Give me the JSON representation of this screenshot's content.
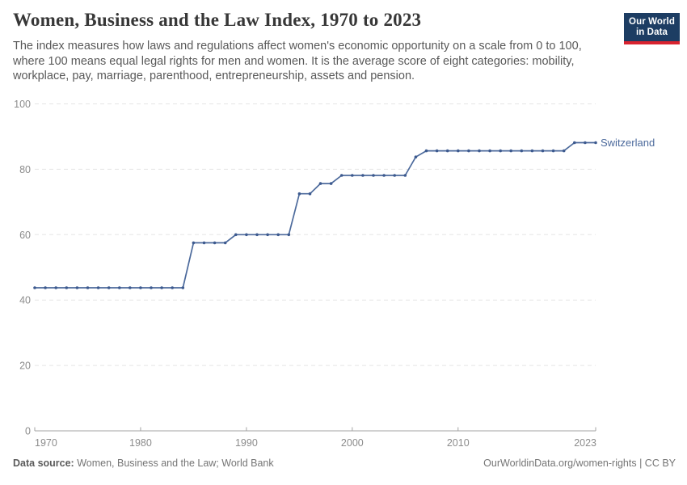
{
  "header": {
    "title": "Women, Business and the Law Index, 1970 to 2023",
    "subtitle": "The index measures how laws and regulations affect women's economic opportunity on a scale from 0 to 100, where 100 means equal legal rights for men and women. It is the average score of eight categories: mobility, workplace, pay, marriage, parenthood, entrepreneurship, assets and pension.",
    "logo_line1": "Our World",
    "logo_line2": "in Data"
  },
  "chart_data": {
    "type": "line",
    "title": "Women, Business and the Law Index, 1970 to 2023",
    "xlabel": "",
    "ylabel": "",
    "xlim": [
      1970,
      2023
    ],
    "ylim": [
      0,
      100
    ],
    "x_ticks": [
      1970,
      1980,
      1990,
      2000,
      2010,
      2023
    ],
    "y_ticks": [
      0,
      20,
      40,
      60,
      80,
      100
    ],
    "grid": "horizontal-dashed",
    "legend_position": "end-of-line-label",
    "series": [
      {
        "name": "Switzerland",
        "color": "#4c6a9c",
        "marker_color": "#3d5a8f",
        "points": [
          [
            1970,
            43.75
          ],
          [
            1971,
            43.75
          ],
          [
            1972,
            43.75
          ],
          [
            1973,
            43.75
          ],
          [
            1974,
            43.75
          ],
          [
            1975,
            43.75
          ],
          [
            1976,
            43.75
          ],
          [
            1977,
            43.75
          ],
          [
            1978,
            43.75
          ],
          [
            1979,
            43.75
          ],
          [
            1980,
            43.75
          ],
          [
            1981,
            43.75
          ],
          [
            1982,
            43.75
          ],
          [
            1983,
            43.75
          ],
          [
            1984,
            43.75
          ],
          [
            1985,
            57.5
          ],
          [
            1986,
            57.5
          ],
          [
            1987,
            57.5
          ],
          [
            1988,
            57.5
          ],
          [
            1989,
            60
          ],
          [
            1990,
            60
          ],
          [
            1991,
            60
          ],
          [
            1992,
            60
          ],
          [
            1993,
            60
          ],
          [
            1994,
            60
          ],
          [
            1995,
            72.5
          ],
          [
            1996,
            72.5
          ],
          [
            1997,
            75.625
          ],
          [
            1998,
            75.625
          ],
          [
            1999,
            78.125
          ],
          [
            2000,
            78.125
          ],
          [
            2001,
            78.125
          ],
          [
            2002,
            78.125
          ],
          [
            2003,
            78.125
          ],
          [
            2004,
            78.125
          ],
          [
            2005,
            78.125
          ],
          [
            2006,
            83.75
          ],
          [
            2007,
            85.625
          ],
          [
            2008,
            85.625
          ],
          [
            2009,
            85.625
          ],
          [
            2010,
            85.625
          ],
          [
            2011,
            85.625
          ],
          [
            2012,
            85.625
          ],
          [
            2013,
            85.625
          ],
          [
            2014,
            85.625
          ],
          [
            2015,
            85.625
          ],
          [
            2016,
            85.625
          ],
          [
            2017,
            85.625
          ],
          [
            2018,
            85.625
          ],
          [
            2019,
            85.625
          ],
          [
            2020,
            85.625
          ],
          [
            2021,
            88.125
          ],
          [
            2022,
            88.125
          ],
          [
            2023,
            88.125
          ]
        ]
      }
    ]
  },
  "footer": {
    "source_label": "Data source:",
    "source_value": "Women, Business and the Law; World Bank",
    "right_text": "OurWorldinData.org/women-rights | CC BY"
  },
  "colors": {
    "logo-navy": "#1d3d63",
    "logo-red": "#d8232f",
    "grid": "#e5e5e5",
    "axis": "#a3a3a3",
    "tick-text": "#8c8c8c"
  }
}
